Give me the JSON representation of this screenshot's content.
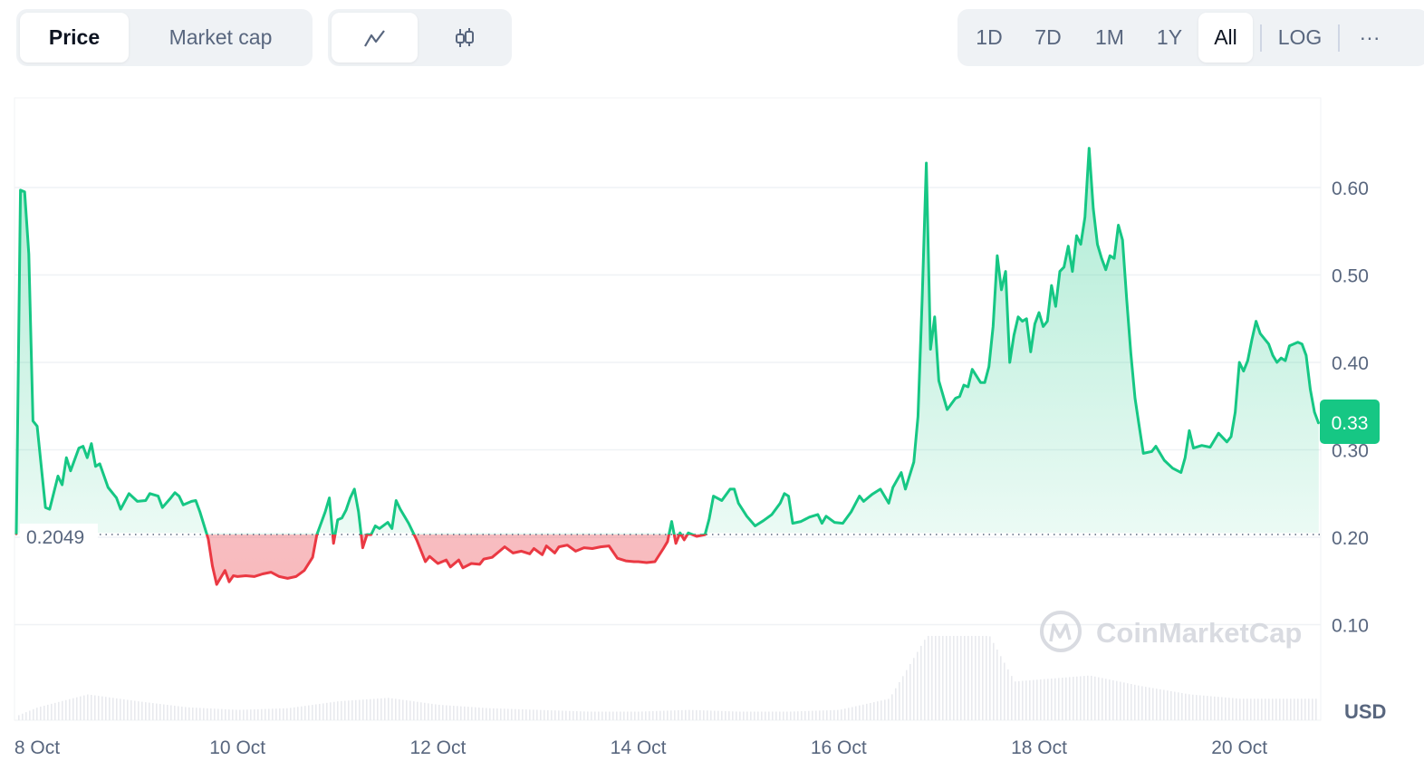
{
  "header": {
    "metric_tabs": [
      {
        "label": "Price",
        "active": true
      },
      {
        "label": "Market cap",
        "active": false
      }
    ],
    "chart_type_tabs": [
      {
        "icon": "line-chart-icon",
        "active": true
      },
      {
        "icon": "candlestick-icon",
        "active": false
      }
    ],
    "range_tabs": [
      {
        "label": "1D"
      },
      {
        "label": "7D"
      },
      {
        "label": "1M"
      },
      {
        "label": "1Y"
      },
      {
        "label": "All",
        "active": true
      }
    ],
    "log_label": "LOG",
    "more_label": "···"
  },
  "colors": {
    "up": "#16c784",
    "down": "#ea3943",
    "grid": "#eff2f5",
    "watermark": "#d5d8de"
  },
  "watermark": "CoinMarketCap",
  "chart_data": {
    "type": "line",
    "title": "",
    "currency_label": "USD",
    "reference_price": 0.2049,
    "reference_label": "0.2049",
    "last_price_label": "0.33",
    "y_ticks": [
      "0.60",
      "0.50",
      "0.40",
      "0.30",
      "0.20",
      "0.10"
    ],
    "ylim": [
      0.0,
      0.7
    ],
    "x_ticks": [
      "8 Oct",
      "10 Oct",
      "12 Oct",
      "14 Oct",
      "16 Oct",
      "18 Oct",
      "20 Oct"
    ],
    "grid": true,
    "series": [
      {
        "points": [
          [
            "Oct 7 19:00",
            0.203
          ],
          [
            "Oct 7 20:00",
            0.597
          ],
          [
            "Oct 7 21:00",
            0.595
          ],
          [
            "Oct 7 22:00",
            0.524
          ],
          [
            "Oct 7 23:00",
            0.333
          ],
          [
            "Oct 8 00:00",
            0.327
          ],
          [
            "Oct 8 02:00",
            0.234
          ],
          [
            "Oct 8 03:00",
            0.232
          ],
          [
            "Oct 8 05:00",
            0.27
          ],
          [
            "Oct 8 06:00",
            0.26
          ],
          [
            "Oct 8 07:00",
            0.291
          ],
          [
            "Oct 8 08:00",
            0.276
          ],
          [
            "Oct 8 10:00",
            0.302
          ],
          [
            "Oct 8 11:00",
            0.304
          ],
          [
            "Oct 8 12:00",
            0.291
          ],
          [
            "Oct 8 13:00",
            0.307
          ],
          [
            "Oct 8 14:00",
            0.281
          ],
          [
            "Oct 8 15:00",
            0.284
          ],
          [
            "Oct 8 17:00",
            0.257
          ],
          [
            "Oct 8 19:00",
            0.245
          ],
          [
            "Oct 8 20:00",
            0.232
          ],
          [
            "Oct 8 22:00",
            0.25
          ],
          [
            "Oct 9 00:00",
            0.241
          ],
          [
            "Oct 9 02:00",
            0.242
          ],
          [
            "Oct 9 03:00",
            0.25
          ],
          [
            "Oct 9 05:00",
            0.247
          ],
          [
            "Oct 9 06:00",
            0.234
          ],
          [
            "Oct 9 08:00",
            0.245
          ],
          [
            "Oct 9 09:00",
            0.251
          ],
          [
            "Oct 9 10:00",
            0.247
          ],
          [
            "Oct 9 11:00",
            0.237
          ],
          [
            "Oct 9 13:00",
            0.241
          ],
          [
            "Oct 9 14:00",
            0.242
          ],
          [
            "Oct 9 15:00",
            0.229
          ],
          [
            "Oct 9 17:00",
            0.198
          ],
          [
            "Oct 9 18:00",
            0.167
          ],
          [
            "Oct 9 19:00",
            0.146
          ],
          [
            "Oct 9 20:00",
            0.154
          ],
          [
            "Oct 9 21:00",
            0.162
          ],
          [
            "Oct 9 22:00",
            0.149
          ],
          [
            "Oct 9 23:00",
            0.156
          ],
          [
            "Oct 10 00:00",
            0.155
          ],
          [
            "Oct 10 02:00",
            0.156
          ],
          [
            "Oct 10 04:00",
            0.155
          ],
          [
            "Oct 10 06:00",
            0.158
          ],
          [
            "Oct 10 08:00",
            0.16
          ],
          [
            "Oct 10 10:00",
            0.155
          ],
          [
            "Oct 10 12:00",
            0.153
          ],
          [
            "Oct 10 14:00",
            0.155
          ],
          [
            "Oct 10 16:00",
            0.162
          ],
          [
            "Oct 10 18:00",
            0.177
          ],
          [
            "Oct 10 19:00",
            0.203
          ],
          [
            "Oct 10 20:00",
            0.216
          ],
          [
            "Oct 10 21:00",
            0.229
          ],
          [
            "Oct 10 22:00",
            0.245
          ],
          [
            "Oct 10 23:00",
            0.193
          ],
          [
            "Oct 11 00:00",
            0.22
          ],
          [
            "Oct 11 01:00",
            0.222
          ],
          [
            "Oct 11 02:00",
            0.231
          ],
          [
            "Oct 11 03:00",
            0.245
          ],
          [
            "Oct 11 04:00",
            0.255
          ],
          [
            "Oct 11 05:00",
            0.229
          ],
          [
            "Oct 11 06:00",
            0.188
          ],
          [
            "Oct 11 07:00",
            0.203
          ],
          [
            "Oct 11 08:00",
            0.203
          ],
          [
            "Oct 11 09:00",
            0.213
          ],
          [
            "Oct 11 10:00",
            0.21
          ],
          [
            "Oct 11 12:00",
            0.217
          ],
          [
            "Oct 11 13:00",
            0.21
          ],
          [
            "Oct 11 14:00",
            0.242
          ],
          [
            "Oct 11 15:00",
            0.232
          ],
          [
            "Oct 11 17:00",
            0.216
          ],
          [
            "Oct 11 19:00",
            0.196
          ],
          [
            "Oct 11 21:00",
            0.172
          ],
          [
            "Oct 11 22:00",
            0.178
          ],
          [
            "Oct 12 00:00",
            0.17
          ],
          [
            "Oct 12 02:00",
            0.174
          ],
          [
            "Oct 12 03:00",
            0.166
          ],
          [
            "Oct 12 05:00",
            0.174
          ],
          [
            "Oct 12 06:00",
            0.165
          ],
          [
            "Oct 12 08:00",
            0.17
          ],
          [
            "Oct 12 10:00",
            0.169
          ],
          [
            "Oct 12 11:00",
            0.175
          ],
          [
            "Oct 12 13:00",
            0.177
          ],
          [
            "Oct 12 15:00",
            0.185
          ],
          [
            "Oct 12 16:00",
            0.189
          ],
          [
            "Oct 12 18:00",
            0.182
          ],
          [
            "Oct 12 20:00",
            0.184
          ],
          [
            "Oct 12 22:00",
            0.181
          ],
          [
            "Oct 12 23:00",
            0.187
          ],
          [
            "Oct 13 01:00",
            0.18
          ],
          [
            "Oct 13 02:00",
            0.19
          ],
          [
            "Oct 13 04:00",
            0.182
          ],
          [
            "Oct 13 05:00",
            0.189
          ],
          [
            "Oct 13 07:00",
            0.191
          ],
          [
            "Oct 13 09:00",
            0.184
          ],
          [
            "Oct 13 11:00",
            0.188
          ],
          [
            "Oct 13 13:00",
            0.187
          ],
          [
            "Oct 13 15:00",
            0.189
          ],
          [
            "Oct 13 17:00",
            0.19
          ],
          [
            "Oct 13 19:00",
            0.176
          ],
          [
            "Oct 13 21:00",
            0.173
          ],
          [
            "Oct 13 23:00",
            0.172
          ],
          [
            "Oct 14 00:00",
            0.172
          ],
          [
            "Oct 14 02:00",
            0.171
          ],
          [
            "Oct 14 04:00",
            0.172
          ],
          [
            "Oct 14 06:00",
            0.187
          ],
          [
            "Oct 14 07:00",
            0.195
          ],
          [
            "Oct 14 08:00",
            0.218
          ],
          [
            "Oct 14 09:00",
            0.193
          ],
          [
            "Oct 14 10:00",
            0.205
          ],
          [
            "Oct 14 11:00",
            0.197
          ],
          [
            "Oct 14 12:00",
            0.205
          ],
          [
            "Oct 14 14:00",
            0.201
          ],
          [
            "Oct 14 16:00",
            0.203
          ],
          [
            "Oct 14 17:00",
            0.221
          ],
          [
            "Oct 14 18:00",
            0.247
          ],
          [
            "Oct 14 20:00",
            0.242
          ],
          [
            "Oct 14 22:00",
            0.255
          ],
          [
            "Oct 14 23:00",
            0.255
          ],
          [
            "Oct 15 00:00",
            0.239
          ],
          [
            "Oct 15 02:00",
            0.224
          ],
          [
            "Oct 15 04:00",
            0.213
          ],
          [
            "Oct 15 06:00",
            0.219
          ],
          [
            "Oct 15 08:00",
            0.226
          ],
          [
            "Oct 15 10:00",
            0.239
          ],
          [
            "Oct 15 11:00",
            0.25
          ],
          [
            "Oct 15 12:00",
            0.247
          ],
          [
            "Oct 15 13:00",
            0.216
          ],
          [
            "Oct 15 15:00",
            0.218
          ],
          [
            "Oct 15 17:00",
            0.223
          ],
          [
            "Oct 15 19:00",
            0.226
          ],
          [
            "Oct 15 20:00",
            0.216
          ],
          [
            "Oct 15 21:00",
            0.224
          ],
          [
            "Oct 15 23:00",
            0.217
          ],
          [
            "Oct 16 01:00",
            0.216
          ],
          [
            "Oct 16 03:00",
            0.229
          ],
          [
            "Oct 16 05:00",
            0.247
          ],
          [
            "Oct 16 06:00",
            0.241
          ],
          [
            "Oct 16 08:00",
            0.249
          ],
          [
            "Oct 16 10:00",
            0.255
          ],
          [
            "Oct 16 12:00",
            0.239
          ],
          [
            "Oct 16 13:00",
            0.257
          ],
          [
            "Oct 16 15:00",
            0.274
          ],
          [
            "Oct 16 16:00",
            0.255
          ],
          [
            "Oct 16 18:00",
            0.286
          ],
          [
            "Oct 16 19:00",
            0.338
          ],
          [
            "Oct 16 20:00",
            0.472
          ],
          [
            "Oct 16 21:00",
            0.628
          ],
          [
            "Oct 16 22:00",
            0.415
          ],
          [
            "Oct 16 23:00",
            0.452
          ],
          [
            "Oct 17 00:00",
            0.379
          ],
          [
            "Oct 17 02:00",
            0.346
          ],
          [
            "Oct 17 04:00",
            0.359
          ],
          [
            "Oct 17 05:00",
            0.361
          ],
          [
            "Oct 17 06:00",
            0.374
          ],
          [
            "Oct 17 07:00",
            0.372
          ],
          [
            "Oct 17 08:00",
            0.392
          ],
          [
            "Oct 17 10:00",
            0.377
          ],
          [
            "Oct 17 11:00",
            0.377
          ],
          [
            "Oct 17 12:00",
            0.395
          ],
          [
            "Oct 17 13:00",
            0.441
          ],
          [
            "Oct 17 14:00",
            0.522
          ],
          [
            "Oct 17 15:00",
            0.483
          ],
          [
            "Oct 17 16:00",
            0.504
          ],
          [
            "Oct 17 17:00",
            0.4
          ],
          [
            "Oct 17 18:00",
            0.431
          ],
          [
            "Oct 17 19:00",
            0.452
          ],
          [
            "Oct 17 20:00",
            0.447
          ],
          [
            "Oct 17 21:00",
            0.45
          ],
          [
            "Oct 17 22:00",
            0.412
          ],
          [
            "Oct 17 23:00",
            0.444
          ],
          [
            "Oct 18 00:00",
            0.457
          ],
          [
            "Oct 18 01:00",
            0.441
          ],
          [
            "Oct 18 02:00",
            0.447
          ],
          [
            "Oct 18 03:00",
            0.488
          ],
          [
            "Oct 18 04:00",
            0.464
          ],
          [
            "Oct 18 05:00",
            0.504
          ],
          [
            "Oct 18 06:00",
            0.509
          ],
          [
            "Oct 18 07:00",
            0.533
          ],
          [
            "Oct 18 08:00",
            0.504
          ],
          [
            "Oct 18 09:00",
            0.545
          ],
          [
            "Oct 18 10:00",
            0.535
          ],
          [
            "Oct 18 11:00",
            0.566
          ],
          [
            "Oct 18 12:00",
            0.645
          ],
          [
            "Oct 18 13:00",
            0.576
          ],
          [
            "Oct 18 14:00",
            0.535
          ],
          [
            "Oct 18 15:00",
            0.519
          ],
          [
            "Oct 18 16:00",
            0.506
          ],
          [
            "Oct 18 17:00",
            0.522
          ],
          [
            "Oct 18 18:00",
            0.519
          ],
          [
            "Oct 18 19:00",
            0.557
          ],
          [
            "Oct 18 20:00",
            0.54
          ],
          [
            "Oct 18 21:00",
            0.472
          ],
          [
            "Oct 18 22:00",
            0.41
          ],
          [
            "Oct 18 23:00",
            0.359
          ],
          [
            "Oct 19 00:00",
            0.327
          ],
          [
            "Oct 19 01:00",
            0.296
          ],
          [
            "Oct 19 03:00",
            0.298
          ],
          [
            "Oct 19 04:00",
            0.304
          ],
          [
            "Oct 19 06:00",
            0.288
          ],
          [
            "Oct 19 08:00",
            0.279
          ],
          [
            "Oct 19 10:00",
            0.274
          ],
          [
            "Oct 19 11:00",
            0.291
          ],
          [
            "Oct 19 12:00",
            0.322
          ],
          [
            "Oct 19 13:00",
            0.302
          ],
          [
            "Oct 19 15:00",
            0.305
          ],
          [
            "Oct 19 17:00",
            0.303
          ],
          [
            "Oct 19 19:00",
            0.319
          ],
          [
            "Oct 19 21:00",
            0.309
          ],
          [
            "Oct 19 22:00",
            0.315
          ],
          [
            "Oct 19 23:00",
            0.343
          ],
          [
            "Oct 20 00:00",
            0.4
          ],
          [
            "Oct 20 01:00",
            0.39
          ],
          [
            "Oct 20 02:00",
            0.402
          ],
          [
            "Oct 20 03:00",
            0.426
          ],
          [
            "Oct 20 04:00",
            0.447
          ],
          [
            "Oct 20 05:00",
            0.433
          ],
          [
            "Oct 20 07:00",
            0.421
          ],
          [
            "Oct 20 08:00",
            0.408
          ],
          [
            "Oct 20 09:00",
            0.4
          ],
          [
            "Oct 20 10:00",
            0.405
          ],
          [
            "Oct 20 11:00",
            0.402
          ],
          [
            "Oct 20 12:00",
            0.419
          ],
          [
            "Oct 20 14:00",
            0.423
          ],
          [
            "Oct 20 15:00",
            0.421
          ],
          [
            "Oct 20 16:00",
            0.408
          ],
          [
            "Oct 20 17:00",
            0.369
          ],
          [
            "Oct 20 18:00",
            0.343
          ],
          [
            "Oct 20 19:00",
            0.33
          ]
        ]
      }
    ],
    "volume_relative": [
      [
        "Oct 7 19:00",
        0.05
      ],
      [
        "Oct 8 00:00",
        0.15
      ],
      [
        "Oct 8 12:00",
        0.3
      ],
      [
        "Oct 9 00:00",
        0.22
      ],
      [
        "Oct 9 12:00",
        0.15
      ],
      [
        "Oct 10 00:00",
        0.12
      ],
      [
        "Oct 10 12:00",
        0.14
      ],
      [
        "Oct 11 00:00",
        0.22
      ],
      [
        "Oct 11 12:00",
        0.26
      ],
      [
        "Oct 12 00:00",
        0.18
      ],
      [
        "Oct 12 12:00",
        0.14
      ],
      [
        "Oct 13 00:00",
        0.12
      ],
      [
        "Oct 13 12:00",
        0.1
      ],
      [
        "Oct 14 00:00",
        0.1
      ],
      [
        "Oct 14 12:00",
        0.12
      ],
      [
        "Oct 15 00:00",
        0.1
      ],
      [
        "Oct 15 12:00",
        0.1
      ],
      [
        "Oct 16 00:00",
        0.12
      ],
      [
        "Oct 16 12:00",
        0.25
      ],
      [
        "Oct 16 21:00",
        0.98
      ],
      [
        "Oct 17 12:00",
        0.98
      ],
      [
        "Oct 17 18:00",
        0.45
      ],
      [
        "Oct 18 12:00",
        0.52
      ],
      [
        "Oct 19 00:00",
        0.4
      ],
      [
        "Oct 19 12:00",
        0.3
      ],
      [
        "Oct 20 00:00",
        0.25
      ],
      [
        "Oct 20 19:00",
        0.25
      ]
    ]
  }
}
